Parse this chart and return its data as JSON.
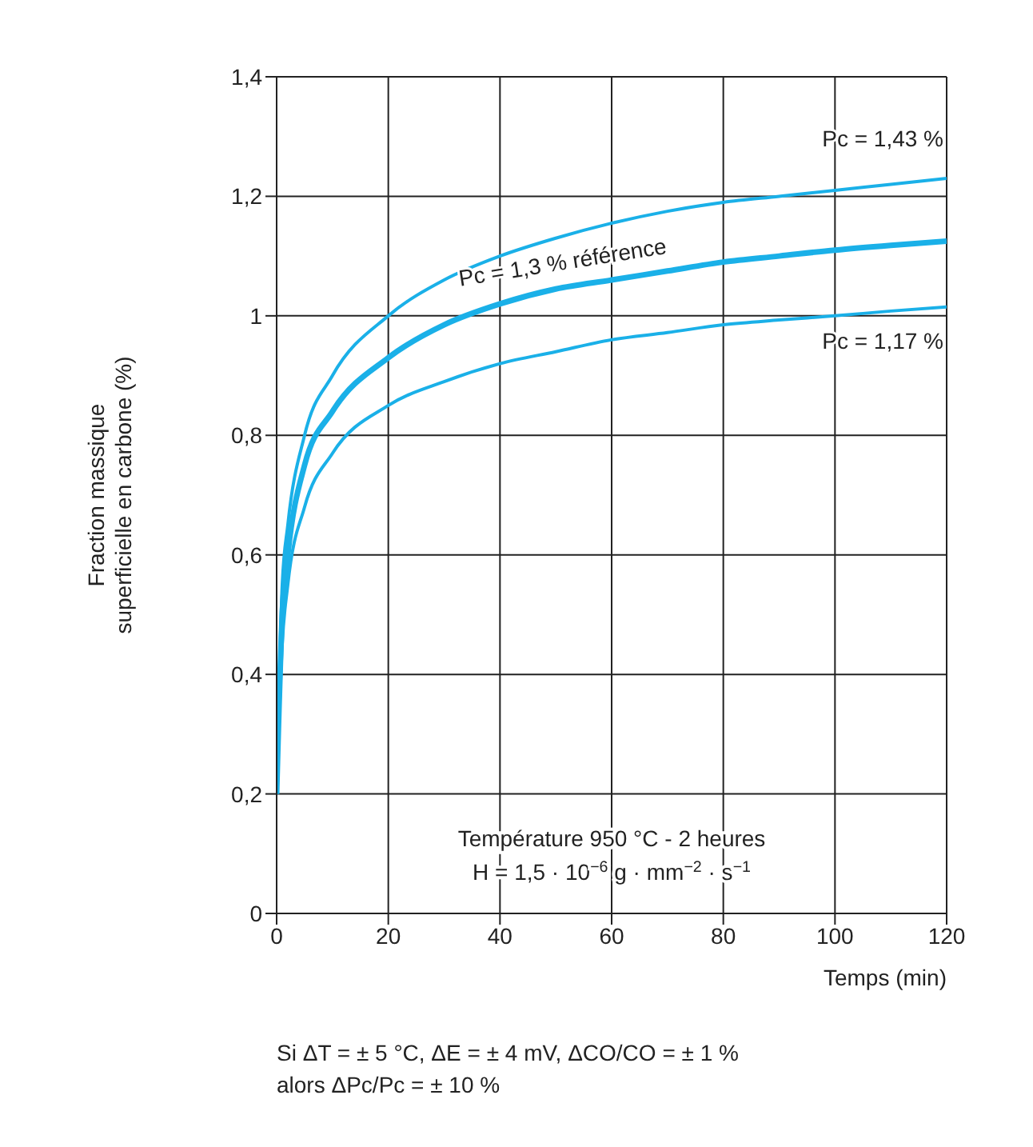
{
  "chart_data": {
    "type": "line",
    "xlabel": "Temps (min)",
    "ylabel": "Fraction massique superficielle en carbone (%)",
    "x": [
      0,
      1,
      2,
      5,
      10,
      20,
      30,
      40,
      50,
      60,
      70,
      80,
      90,
      100,
      110,
      120
    ],
    "series": [
      {
        "name": "Pc = 1,43 %",
        "color": "#1ab0e8",
        "values": [
          0.2,
          0.55,
          0.65,
          0.8,
          0.9,
          1.0,
          1.06,
          1.1,
          1.13,
          1.155,
          1.175,
          1.19,
          1.2,
          1.21,
          1.22,
          1.23
        ]
      },
      {
        "name": "Pc = 1,3 % référence",
        "color": "#1ab0e8",
        "values": [
          0.2,
          0.5,
          0.6,
          0.75,
          0.84,
          0.93,
          0.985,
          1.02,
          1.045,
          1.06,
          1.075,
          1.09,
          1.1,
          1.11,
          1.118,
          1.125
        ]
      },
      {
        "name": "Pc = 1,17 %",
        "color": "#1ab0e8",
        "values": [
          0.2,
          0.45,
          0.55,
          0.68,
          0.77,
          0.85,
          0.89,
          0.92,
          0.94,
          0.96,
          0.972,
          0.985,
          0.993,
          1.0,
          1.008,
          1.015
        ]
      }
    ],
    "xlim": [
      0,
      120
    ],
    "xticks": [
      0,
      20,
      40,
      60,
      80,
      100,
      120
    ],
    "ylim": [
      0,
      1.4
    ],
    "yticks": [
      0,
      {
        "value": 0.2,
        "label": "0,2"
      },
      {
        "value": 0.4,
        "label": "0,4"
      },
      {
        "value": 0.6,
        "label": "0,6"
      },
      {
        "value": 0.8,
        "label": "0,8"
      },
      1,
      {
        "value": 1.2,
        "label": "1,2"
      },
      {
        "value": 1.4,
        "label": "1,4"
      }
    ],
    "grid": true,
    "marker": "none",
    "line_style": "solid",
    "annotations": [
      "Température 950 °C - 2 heures",
      "H = 1,5 · 10$^{−6}$ g · mm$^{−2}$ · s$^{−1}$",
      "Si ΔT = ± 5 °C, ΔE = ± 4 mV, ΔCO/CO = ± 1 %",
      "alors ΔPc/Pc = ± 10 %"
    ]
  }
}
